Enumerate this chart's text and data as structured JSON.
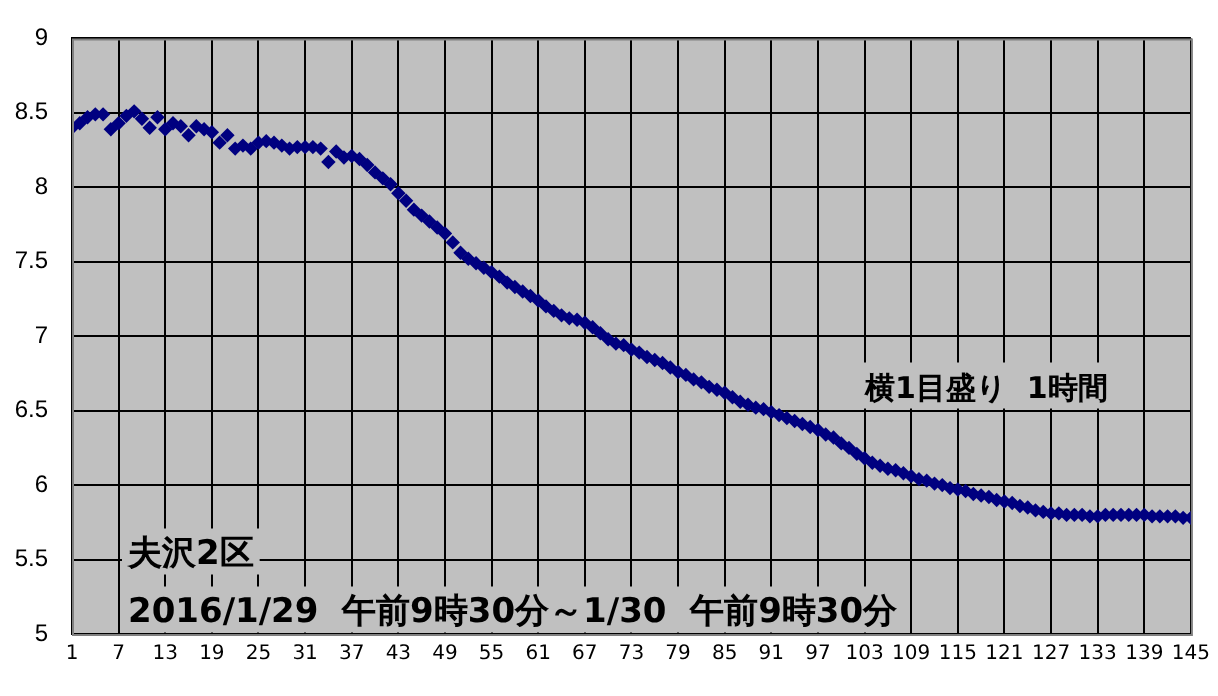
{
  "chart_data": {
    "type": "scatter",
    "marker": "diamond",
    "grid": true,
    "x": [
      1,
      2,
      3,
      4,
      5,
      6,
      7,
      8,
      9,
      10,
      11,
      12,
      13,
      14,
      15,
      16,
      17,
      18,
      19,
      20,
      21,
      22,
      23,
      24,
      25,
      26,
      27,
      28,
      29,
      30,
      31,
      32,
      33,
      34,
      35,
      36,
      37,
      38,
      39,
      40,
      41,
      42,
      43,
      44,
      45,
      46,
      47,
      48,
      49,
      50,
      51,
      52,
      53,
      54,
      55,
      56,
      57,
      58,
      59,
      60,
      61,
      62,
      63,
      64,
      65,
      66,
      67,
      68,
      69,
      70,
      71,
      72,
      73,
      74,
      75,
      76,
      77,
      78,
      79,
      80,
      81,
      82,
      83,
      84,
      85,
      86,
      87,
      88,
      89,
      90,
      91,
      92,
      93,
      94,
      95,
      96,
      97,
      98,
      99,
      100,
      101,
      102,
      103,
      104,
      105,
      106,
      107,
      108,
      109,
      110,
      111,
      112,
      113,
      114,
      115,
      116,
      117,
      118,
      119,
      120,
      121,
      122,
      123,
      124,
      125,
      126,
      127,
      128,
      129,
      130,
      131,
      132,
      133,
      134,
      135,
      136,
      137,
      138,
      139,
      140,
      141,
      142,
      143,
      144,
      145
    ],
    "series": [
      {
        "color": "#000080",
        "values": [
          8.4,
          8.43,
          8.47,
          8.49,
          8.49,
          8.39,
          8.43,
          8.48,
          8.51,
          8.46,
          8.4,
          8.47,
          8.39,
          8.43,
          8.41,
          8.35,
          8.41,
          8.39,
          8.37,
          8.3,
          8.35,
          8.26,
          8.28,
          8.26,
          8.3,
          8.31,
          8.3,
          8.28,
          8.26,
          8.27,
          8.27,
          8.27,
          8.26,
          8.17,
          8.24,
          8.2,
          8.21,
          8.19,
          8.15,
          8.1,
          8.06,
          8.02,
          7.96,
          7.91,
          7.85,
          7.81,
          7.77,
          7.73,
          7.69,
          7.63,
          7.56,
          7.52,
          7.49,
          7.46,
          7.43,
          7.4,
          7.36,
          7.33,
          7.3,
          7.27,
          7.24,
          7.2,
          7.17,
          7.14,
          7.12,
          7.11,
          7.09,
          7.06,
          7.02,
          6.98,
          6.95,
          6.94,
          6.91,
          6.89,
          6.86,
          6.84,
          6.82,
          6.79,
          6.76,
          6.74,
          6.71,
          6.69,
          6.66,
          6.64,
          6.62,
          6.59,
          6.56,
          6.54,
          6.52,
          6.51,
          6.49,
          6.47,
          6.45,
          6.43,
          6.41,
          6.39,
          6.37,
          6.34,
          6.32,
          6.28,
          6.25,
          6.21,
          6.18,
          6.15,
          6.13,
          6.11,
          6.1,
          6.08,
          6.06,
          6.04,
          6.03,
          6.01,
          6.0,
          5.98,
          5.97,
          5.96,
          5.94,
          5.93,
          5.92,
          5.9,
          5.89,
          5.88,
          5.86,
          5.85,
          5.83,
          5.82,
          5.81,
          5.81,
          5.8,
          5.8,
          5.8,
          5.79,
          5.79,
          5.8,
          5.8,
          5.8,
          5.8,
          5.8,
          5.8,
          5.79,
          5.79,
          5.79,
          5.79,
          5.78,
          5.78
        ]
      }
    ],
    "xlim": [
      1,
      145
    ],
    "xticks": [
      1,
      7,
      13,
      19,
      25,
      31,
      37,
      43,
      49,
      55,
      61,
      67,
      73,
      79,
      85,
      91,
      97,
      103,
      109,
      115,
      121,
      127,
      133,
      139,
      145
    ],
    "ylim": [
      5,
      9
    ],
    "yticks": [
      5,
      5.5,
      6,
      6.5,
      7,
      7.5,
      8,
      8.5,
      9
    ],
    "annotations": [
      "横1目盛り  1時間",
      "夫沢2区",
      "2016/1/29  午前9時30分～1/30  午前9時30分"
    ]
  }
}
